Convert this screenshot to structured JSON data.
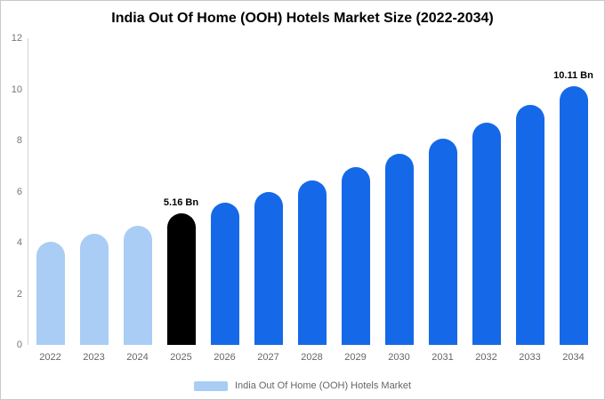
{
  "title": "India Out Of Home (OOH) Hotels Market Size (2022-2034)",
  "legend": {
    "label": "India Out Of Home (OOH) Hotels Market",
    "swatch_color": "#a9cdf4"
  },
  "chart_data": {
    "type": "bar",
    "title": "India Out Of Home (OOH) Hotels Market Size (2022-2034)",
    "categories": [
      "2022",
      "2023",
      "2024",
      "2025",
      "2026",
      "2027",
      "2028",
      "2029",
      "2030",
      "2031",
      "2032",
      "2033",
      "2034"
    ],
    "values": [
      4.03,
      4.35,
      4.66,
      5.16,
      5.56,
      5.99,
      6.45,
      6.95,
      7.49,
      8.07,
      8.7,
      9.38,
      10.11
    ],
    "ylim": [
      0,
      12
    ],
    "y_ticks": [
      0,
      2,
      4,
      6,
      8,
      10,
      12
    ],
    "bar_colors": [
      "#a9cdf4",
      "#a9cdf4",
      "#a9cdf4",
      "#000000",
      "#1569e8",
      "#1569e8",
      "#1569e8",
      "#1569e8",
      "#1569e8",
      "#1569e8",
      "#1569e8",
      "#1569e8",
      "#1569e8"
    ],
    "annotations": {
      "2025": "5.16 Bn",
      "2034": "10.11 Bn"
    },
    "legend_entries": [
      "India Out Of Home (OOH) Hotels Market"
    ],
    "legend_position": "bottom",
    "grid": false
  }
}
